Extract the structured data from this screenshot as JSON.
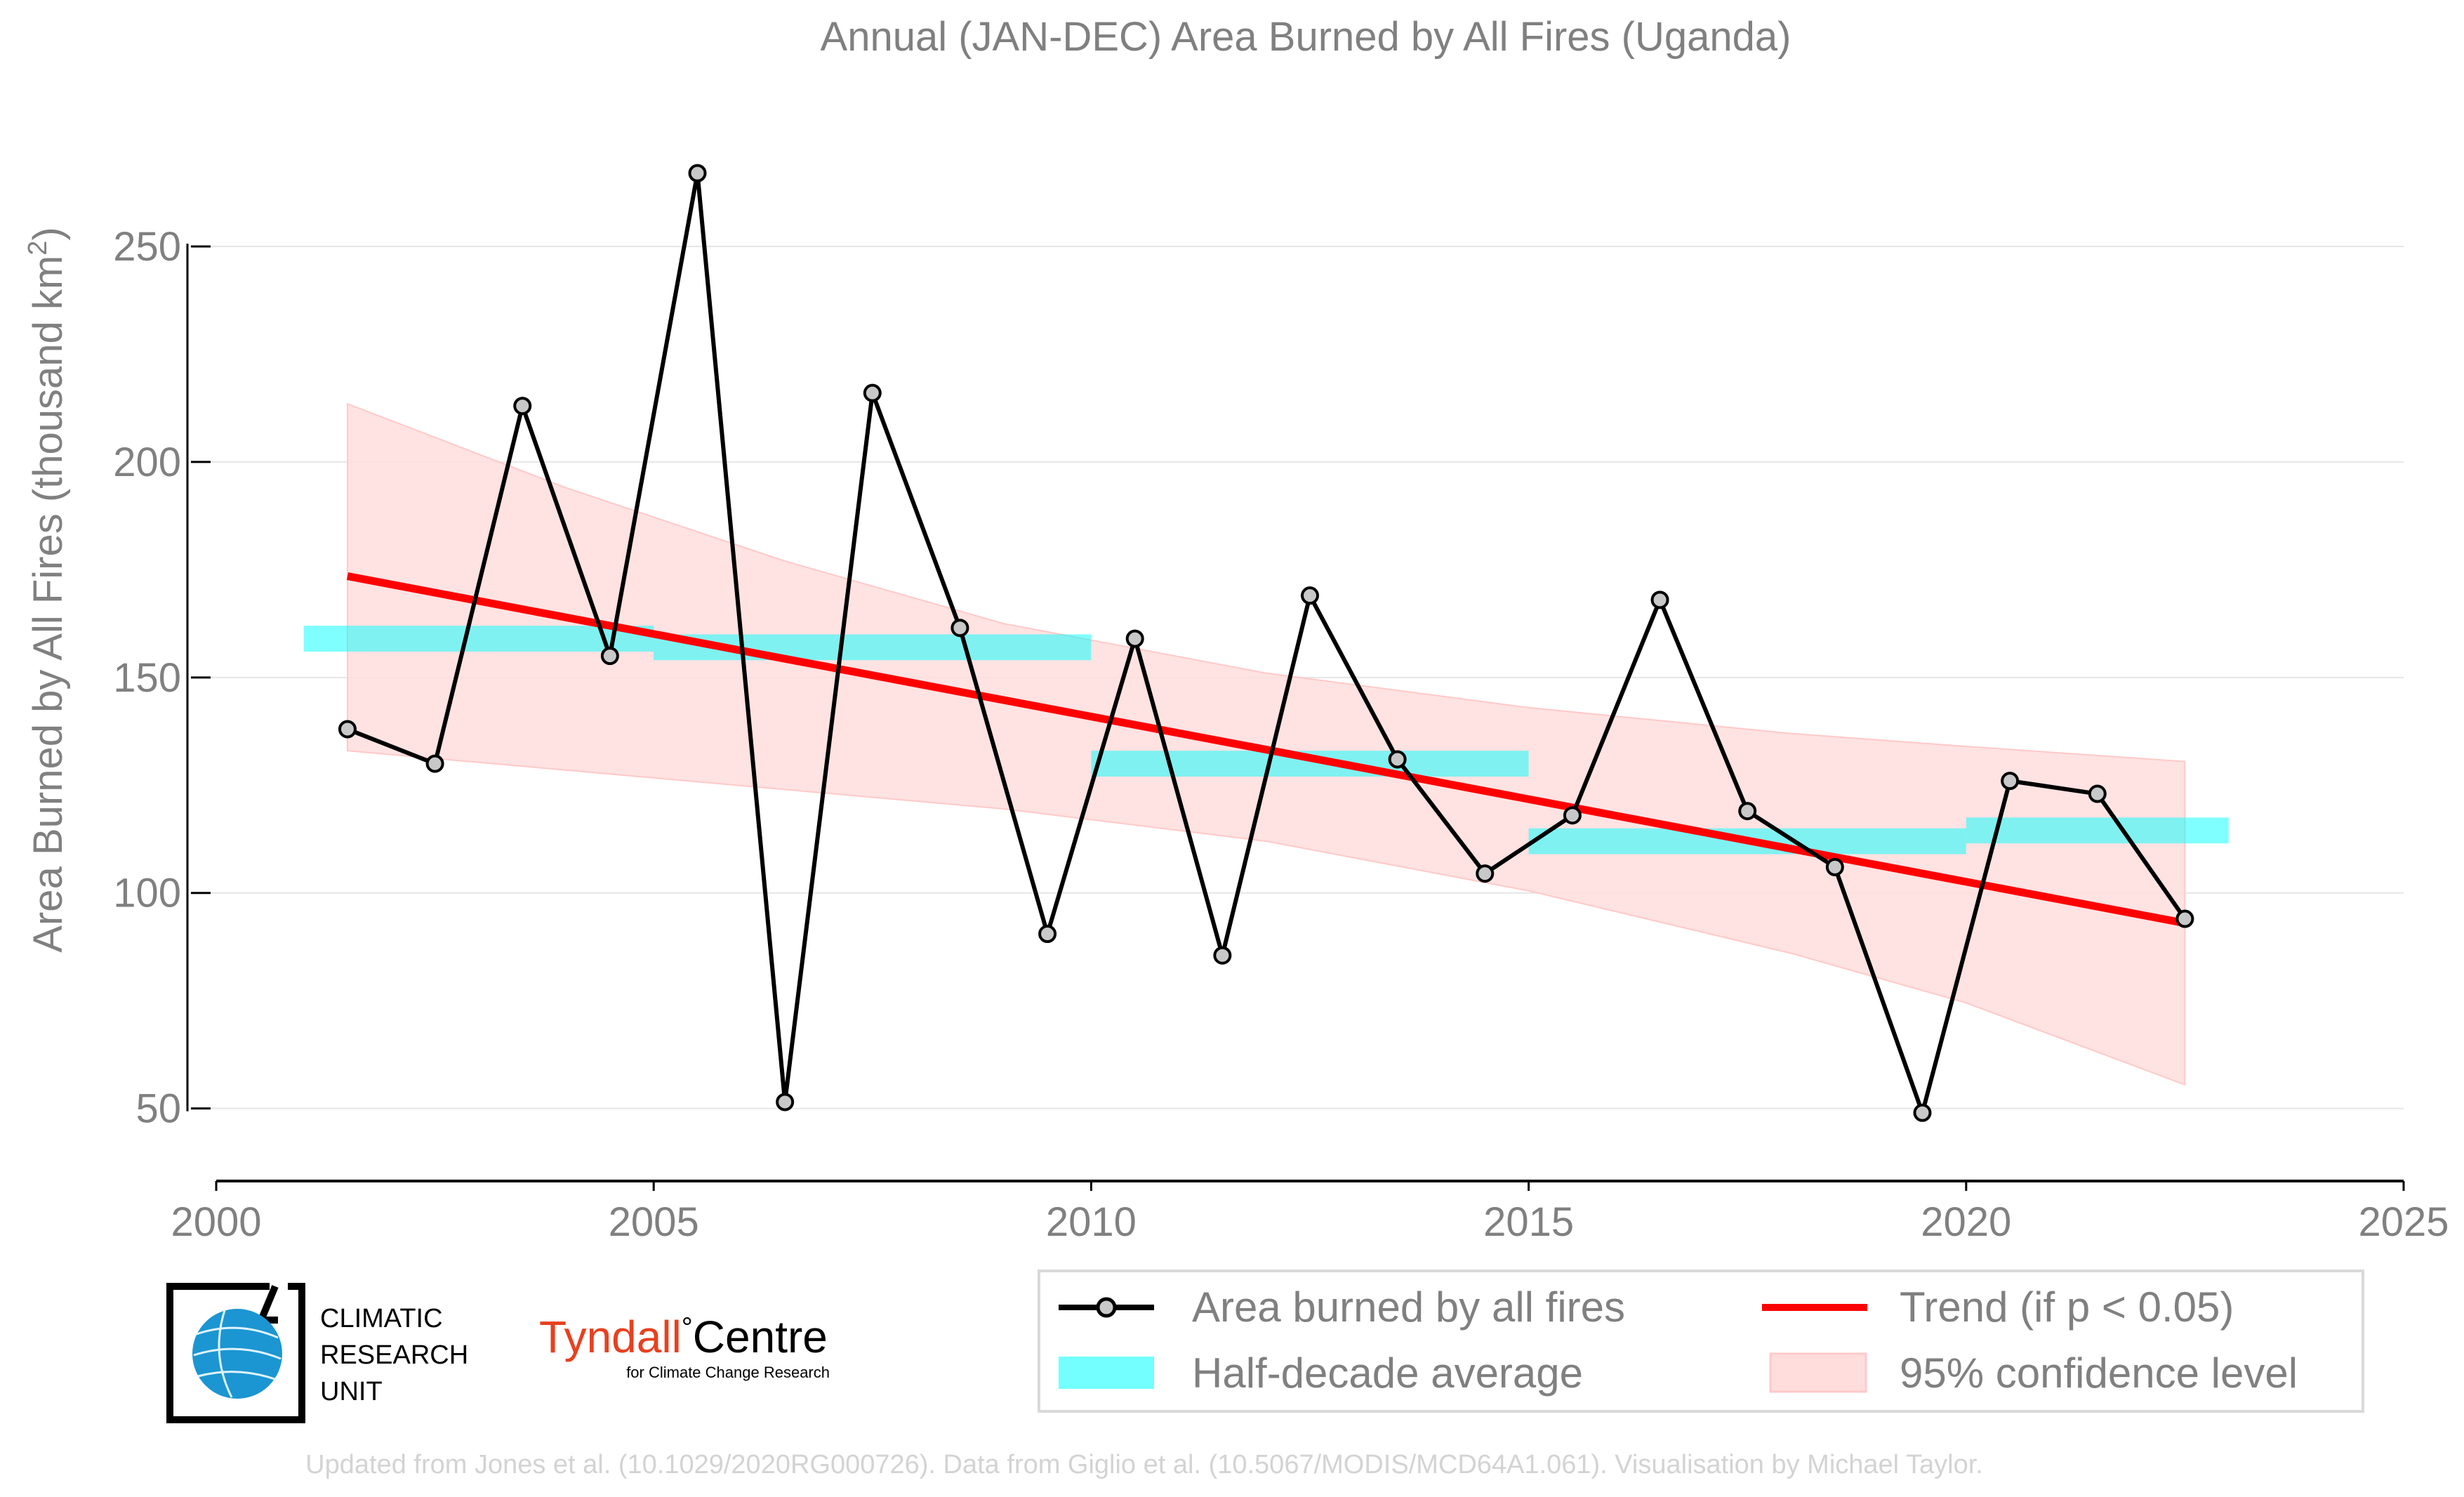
{
  "chart_data": {
    "type": "line",
    "title": "Annual (JAN-DEC) Area Burned by All Fires (Uganda)",
    "ylabel_main": "Area Burned by All Fires (thousand km",
    "ylabel_sup": "2",
    "ylabel_end": ")",
    "xlim": [
      2000,
      2025
    ],
    "ylim": [
      33,
      286
    ],
    "x_ticks": [
      2000,
      2005,
      2010,
      2015,
      2020,
      2025
    ],
    "x_tick_labels": [
      "2000",
      "2005",
      "2010",
      "2015",
      "2020",
      "2025"
    ],
    "y_ticks": [
      50,
      100,
      150,
      200,
      250
    ],
    "y_tick_labels": [
      "50",
      "100",
      "150",
      "200",
      "250"
    ],
    "grid": "horizontal",
    "legend_position": "bottom-right",
    "series": [
      {
        "name": "Area burned by all fires",
        "color": "#000000",
        "marker_fill": "#c8c8c8",
        "x": [
          2001.5,
          2002.5,
          2003.5,
          2004.5,
          2005.5,
          2006.5,
          2007.5,
          2008.5,
          2009.5,
          2010.5,
          2011.5,
          2012.5,
          2013.5,
          2014.5,
          2015.5,
          2016.5,
          2017.5,
          2018.5,
          2019.5,
          2020.5,
          2021.5,
          2022.5
        ],
        "y": [
          138,
          130,
          213,
          155,
          267,
          51.5,
          216,
          161.5,
          90.5,
          159,
          85.5,
          169,
          131,
          104.5,
          118,
          168,
          119,
          106,
          49,
          126,
          123,
          94
        ]
      }
    ],
    "half_decade_average": {
      "name": "Half-decade average",
      "color": "#00ffff",
      "segments": [
        {
          "x0": 2001,
          "x1": 2005,
          "y": 159
        },
        {
          "x0": 2005,
          "x1": 2010,
          "y": 157
        },
        {
          "x0": 2010,
          "x1": 2015,
          "y": 130
        },
        {
          "x0": 2015,
          "x1": 2020,
          "y": 112
        },
        {
          "x0": 2020,
          "x1": 2023,
          "y": 114.5
        }
      ]
    },
    "trend": {
      "name": "Trend (if p < 0.05)",
      "color": "#ff0000",
      "x": [
        2001.5,
        2022.5
      ],
      "y": [
        173.5,
        93
      ]
    },
    "confidence_band": {
      "name": "95% confidence level",
      "color": "#ffdddd",
      "x": [
        2001.5,
        2004,
        2006.5,
        2009,
        2012,
        2015,
        2018,
        2020,
        2022.5
      ],
      "upper": [
        213.5,
        194,
        177,
        162.5,
        151,
        143,
        137,
        134,
        130.5
      ],
      "lower": [
        133,
        128.5,
        124,
        119.5,
        112,
        100.5,
        86,
        74.5,
        55.5
      ]
    }
  },
  "legend": {
    "items": [
      {
        "label": "Area burned by all fires",
        "kind": "line-marker",
        "color": "#000000"
      },
      {
        "label": "Trend (if p < 0.05)",
        "kind": "line",
        "color": "#ff0000"
      },
      {
        "label": "Half-decade average",
        "kind": "band",
        "color": "#00ffff"
      },
      {
        "label": "95% confidence level",
        "kind": "patch",
        "color": "#ffdddd"
      }
    ]
  },
  "logos": {
    "cru_line1": "CLIMATIC",
    "cru_line2": "RESEARCH",
    "cru_line3": "UNIT",
    "tyndall_name": "Tyndall",
    "tyndall_degree": "°",
    "tyndall_centre": "Centre",
    "tyndall_sub": "for Climate Change Research"
  },
  "footer": "Updated from Jones et al. (10.1029/2020RG000726). Data from Giglio et al. (10.5067/MODIS/MCD64A1.061). Visualisation by Michael Taylor."
}
